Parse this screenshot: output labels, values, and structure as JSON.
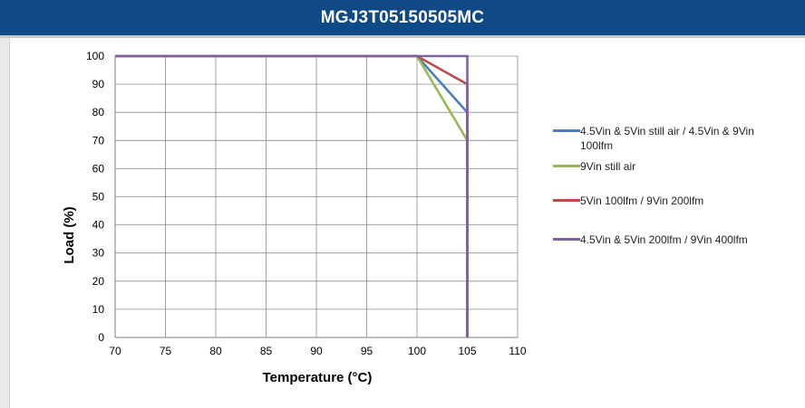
{
  "header": {
    "title": "MGJ3T05150505MC"
  },
  "chart_data": {
    "type": "line",
    "xlabel": "Temperature (°C)",
    "ylabel": "Load (%)",
    "xlim": [
      70,
      110
    ],
    "ylim": [
      0,
      100
    ],
    "xticks": [
      70,
      75,
      80,
      85,
      90,
      95,
      100,
      105,
      110
    ],
    "yticks": [
      0,
      10,
      20,
      30,
      40,
      50,
      60,
      70,
      80,
      90,
      100
    ],
    "grid": true,
    "legend_position": "right",
    "series": [
      {
        "name": "4.5Vin & 5Vin still air / 4.5Vin & 9Vin 100lfm",
        "color": "#4a7ebb",
        "points": [
          [
            70,
            100
          ],
          [
            100,
            100
          ],
          [
            105,
            80
          ],
          [
            105,
            0
          ]
        ]
      },
      {
        "name": "9Vin still air",
        "color": "#98b954",
        "points": [
          [
            70,
            100
          ],
          [
            100,
            100
          ],
          [
            105,
            70
          ],
          [
            105,
            0
          ]
        ]
      },
      {
        "name": "5Vin 100lfm / 9Vin 200lfm",
        "color": "#be4b48",
        "points": [
          [
            70,
            100
          ],
          [
            100,
            100
          ],
          [
            105,
            90
          ],
          [
            105,
            0
          ]
        ]
      },
      {
        "name": "4.5Vin & 5Vin 200lfm / 9Vin 400lfm",
        "color": "#7d60a0",
        "points": [
          [
            70,
            100
          ],
          [
            105,
            100
          ],
          [
            105,
            0
          ]
        ]
      }
    ]
  }
}
